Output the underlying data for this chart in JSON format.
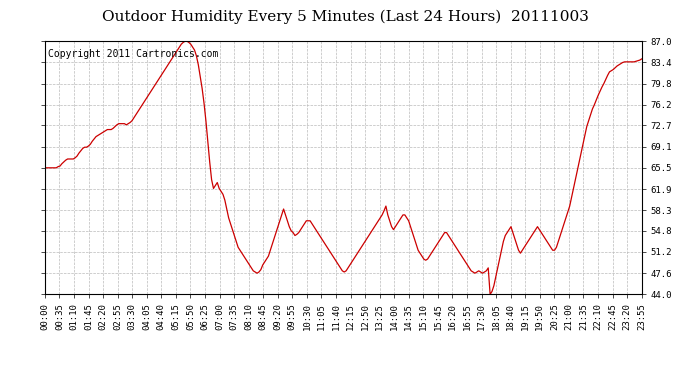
{
  "title": "Outdoor Humidity Every 5 Minutes (Last 24 Hours)  20111003",
  "copyright": "Copyright 2011 Cartronics.com",
  "ylabel_right": [
    "87.0",
    "83.4",
    "79.8",
    "76.2",
    "72.7",
    "69.1",
    "65.5",
    "61.9",
    "58.3",
    "54.8",
    "51.2",
    "47.6",
    "44.0"
  ],
  "ymin": 44.0,
  "ymax": 87.0,
  "line_color": "#cc0000",
  "background_color": "#ffffff",
  "grid_color": "#bbbbbb",
  "title_fontsize": 11,
  "copyright_fontsize": 7,
  "tick_fontsize": 6.5,
  "x_tick_labels": [
    "00:00",
    "00:35",
    "01:10",
    "01:45",
    "02:20",
    "02:55",
    "03:30",
    "04:05",
    "04:40",
    "05:15",
    "05:50",
    "06:25",
    "07:00",
    "07:35",
    "08:10",
    "08:45",
    "09:20",
    "09:55",
    "10:30",
    "11:05",
    "11:40",
    "12:15",
    "12:50",
    "13:25",
    "14:00",
    "14:35",
    "15:10",
    "15:45",
    "16:20",
    "16:55",
    "17:30",
    "18:05",
    "18:40",
    "19:15",
    "19:50",
    "20:25",
    "21:00",
    "21:35",
    "22:10",
    "22:45",
    "23:20",
    "23:55"
  ],
  "humidity_data": [
    65.5,
    65.5,
    65.5,
    65.5,
    65.5,
    65.5,
    65.5,
    65.7,
    65.8,
    66.2,
    66.5,
    66.8,
    67.0,
    67.0,
    67.0,
    67.0,
    67.2,
    67.5,
    68.0,
    68.4,
    68.8,
    69.0,
    69.0,
    69.2,
    69.5,
    70.0,
    70.4,
    70.8,
    71.0,
    71.2,
    71.4,
    71.6,
    71.8,
    72.0,
    72.0,
    72.0,
    72.2,
    72.5,
    72.8,
    73.0,
    73.0,
    73.0,
    73.0,
    72.8,
    73.0,
    73.2,
    73.5,
    74.0,
    74.5,
    75.0,
    75.5,
    76.0,
    76.5,
    77.0,
    77.5,
    78.0,
    78.5,
    79.0,
    79.5,
    80.0,
    80.5,
    81.0,
    81.5,
    82.0,
    82.5,
    83.0,
    83.5,
    84.0,
    84.5,
    85.0,
    85.5,
    86.0,
    86.5,
    86.8,
    87.0,
    87.0,
    86.8,
    86.5,
    86.0,
    85.5,
    84.5,
    83.0,
    81.0,
    79.0,
    76.5,
    73.5,
    70.0,
    66.5,
    63.5,
    62.0,
    62.5,
    63.0,
    62.0,
    61.5,
    61.0,
    60.0,
    58.5,
    57.0,
    56.0,
    55.0,
    54.0,
    53.0,
    52.0,
    51.5,
    51.0,
    50.5,
    50.0,
    49.5,
    49.0,
    48.5,
    48.0,
    47.8,
    47.6,
    47.8,
    48.2,
    49.0,
    49.5,
    50.0,
    50.5,
    51.5,
    52.5,
    53.5,
    54.5,
    55.5,
    56.5,
    57.5,
    58.5,
    57.5,
    56.5,
    55.5,
    54.8,
    54.5,
    54.0,
    54.2,
    54.5,
    55.0,
    55.5,
    56.0,
    56.5,
    56.5,
    56.5,
    56.0,
    55.5,
    55.0,
    54.5,
    54.0,
    53.5,
    53.0,
    52.5,
    52.0,
    51.5,
    51.0,
    50.5,
    50.0,
    49.5,
    49.0,
    48.5,
    48.0,
    47.8,
    48.0,
    48.5,
    49.0,
    49.5,
    50.0,
    50.5,
    51.0,
    51.5,
    52.0,
    52.5,
    53.0,
    53.5,
    54.0,
    54.5,
    55.0,
    55.5,
    56.0,
    56.5,
    57.0,
    57.5,
    58.2,
    59.0,
    57.5,
    56.5,
    55.5,
    55.0,
    55.5,
    56.0,
    56.5,
    57.0,
    57.5,
    57.5,
    57.0,
    56.5,
    55.5,
    54.5,
    53.5,
    52.5,
    51.5,
    51.0,
    50.5,
    50.0,
    49.8,
    50.0,
    50.5,
    51.0,
    51.5,
    52.0,
    52.5,
    53.0,
    53.5,
    54.0,
    54.5,
    54.5,
    54.0,
    53.5,
    53.0,
    52.5,
    52.0,
    51.5,
    51.0,
    50.5,
    50.0,
    49.5,
    49.0,
    48.5,
    48.0,
    47.8,
    47.6,
    47.8,
    48.0,
    47.8,
    47.6,
    47.8,
    48.0,
    48.5,
    44.0,
    44.5,
    45.5,
    47.0,
    48.5,
    50.0,
    51.5,
    53.0,
    54.0,
    54.5,
    55.0,
    55.5,
    54.5,
    53.5,
    52.5,
    51.5,
    51.0,
    51.5,
    52.0,
    52.5,
    53.0,
    53.5,
    54.0,
    54.5,
    55.0,
    55.5,
    55.0,
    54.5,
    54.0,
    53.5,
    53.0,
    52.5,
    52.0,
    51.5,
    51.5,
    52.0,
    53.0,
    54.0,
    55.0,
    56.0,
    57.0,
    58.0,
    59.0,
    60.5,
    62.0,
    63.5,
    65.0,
    66.5,
    68.0,
    69.5,
    71.0,
    72.5,
    73.5,
    74.5,
    75.5,
    76.2,
    77.0,
    77.8,
    78.5,
    79.2,
    79.8,
    80.5,
    81.2,
    81.8,
    82.0,
    82.2,
    82.5,
    82.8,
    83.0,
    83.2,
    83.4,
    83.5,
    83.5,
    83.5,
    83.5,
    83.5,
    83.5,
    83.6,
    83.7,
    83.8,
    84.0
  ]
}
